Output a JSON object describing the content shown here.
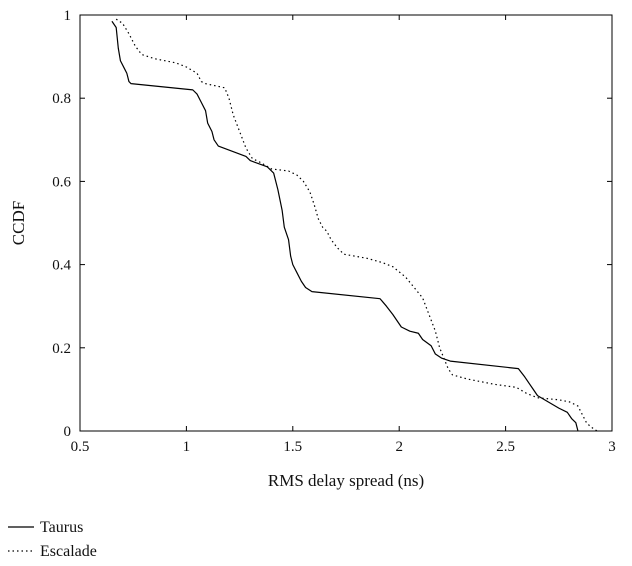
{
  "chart_data": {
    "type": "line",
    "xlabel": "RMS delay spread (ns)",
    "ylabel": "CCDF",
    "xlim": [
      0.5,
      3
    ],
    "ylim": [
      0,
      1
    ],
    "xticks": [
      "0.5",
      "1",
      "1.5",
      "2",
      "2.5",
      "3"
    ],
    "yticks": [
      "0",
      "0.2",
      "0.4",
      "0.6",
      "0.8",
      "1"
    ],
    "grid": false,
    "legend_position": "bottom-left",
    "series": [
      {
        "name": "Taurus",
        "style": "solid",
        "color": "#000000",
        "points": [
          [
            0.65,
            0.985
          ],
          [
            0.67,
            0.97
          ],
          [
            0.68,
            0.92
          ],
          [
            0.69,
            0.89
          ],
          [
            0.71,
            0.87
          ],
          [
            0.72,
            0.86
          ],
          [
            0.73,
            0.84
          ],
          [
            0.74,
            0.835
          ],
          [
            1.03,
            0.82
          ],
          [
            1.05,
            0.81
          ],
          [
            1.07,
            0.79
          ],
          [
            1.09,
            0.77
          ],
          [
            1.1,
            0.74
          ],
          [
            1.12,
            0.72
          ],
          [
            1.13,
            0.7
          ],
          [
            1.15,
            0.685
          ],
          [
            1.28,
            0.66
          ],
          [
            1.3,
            0.65
          ],
          [
            1.38,
            0.635
          ],
          [
            1.41,
            0.62
          ],
          [
            1.43,
            0.58
          ],
          [
            1.45,
            0.53
          ],
          [
            1.46,
            0.49
          ],
          [
            1.48,
            0.46
          ],
          [
            1.49,
            0.42
          ],
          [
            1.5,
            0.4
          ],
          [
            1.52,
            0.38
          ],
          [
            1.54,
            0.36
          ],
          [
            1.56,
            0.345
          ],
          [
            1.59,
            0.335
          ],
          [
            1.91,
            0.318
          ],
          [
            1.94,
            0.3
          ],
          [
            1.97,
            0.28
          ],
          [
            1.99,
            0.265
          ],
          [
            2.01,
            0.25
          ],
          [
            2.05,
            0.24
          ],
          [
            2.09,
            0.235
          ],
          [
            2.11,
            0.22
          ],
          [
            2.15,
            0.205
          ],
          [
            2.17,
            0.185
          ],
          [
            2.2,
            0.175
          ],
          [
            2.24,
            0.168
          ],
          [
            2.56,
            0.15
          ],
          [
            2.59,
            0.13
          ],
          [
            2.61,
            0.115
          ],
          [
            2.63,
            0.1
          ],
          [
            2.65,
            0.085
          ],
          [
            2.7,
            0.07
          ],
          [
            2.75,
            0.055
          ],
          [
            2.79,
            0.045
          ],
          [
            2.81,
            0.03
          ],
          [
            2.83,
            0.02
          ],
          [
            2.84,
            0.0
          ]
        ]
      },
      {
        "name": "Escalade",
        "style": "dotted",
        "color": "#000000",
        "points": [
          [
            0.67,
            0.99
          ],
          [
            0.7,
            0.98
          ],
          [
            0.73,
            0.955
          ],
          [
            0.76,
            0.925
          ],
          [
            0.79,
            0.905
          ],
          [
            0.85,
            0.895
          ],
          [
            0.95,
            0.885
          ],
          [
            1.0,
            0.875
          ],
          [
            1.05,
            0.86
          ],
          [
            1.07,
            0.84
          ],
          [
            1.09,
            0.835
          ],
          [
            1.18,
            0.825
          ],
          [
            1.2,
            0.8
          ],
          [
            1.22,
            0.76
          ],
          [
            1.25,
            0.72
          ],
          [
            1.28,
            0.68
          ],
          [
            1.31,
            0.655
          ],
          [
            1.35,
            0.645
          ],
          [
            1.4,
            0.63
          ],
          [
            1.48,
            0.625
          ],
          [
            1.52,
            0.615
          ],
          [
            1.55,
            0.6
          ],
          [
            1.58,
            0.575
          ],
          [
            1.6,
            0.545
          ],
          [
            1.62,
            0.51
          ],
          [
            1.64,
            0.49
          ],
          [
            1.66,
            0.48
          ],
          [
            1.68,
            0.46
          ],
          [
            1.71,
            0.44
          ],
          [
            1.74,
            0.425
          ],
          [
            1.85,
            0.415
          ],
          [
            1.92,
            0.405
          ],
          [
            1.97,
            0.395
          ],
          [
            2.03,
            0.37
          ],
          [
            2.07,
            0.345
          ],
          [
            2.11,
            0.32
          ],
          [
            2.14,
            0.28
          ],
          [
            2.17,
            0.24
          ],
          [
            2.19,
            0.2
          ],
          [
            2.21,
            0.175
          ],
          [
            2.23,
            0.15
          ],
          [
            2.25,
            0.135
          ],
          [
            2.32,
            0.125
          ],
          [
            2.45,
            0.112
          ],
          [
            2.55,
            0.105
          ],
          [
            2.6,
            0.09
          ],
          [
            2.65,
            0.08
          ],
          [
            2.75,
            0.075
          ],
          [
            2.8,
            0.07
          ],
          [
            2.84,
            0.06
          ],
          [
            2.86,
            0.04
          ],
          [
            2.88,
            0.02
          ],
          [
            2.9,
            0.01
          ],
          [
            2.93,
            0.0
          ]
        ]
      }
    ]
  }
}
